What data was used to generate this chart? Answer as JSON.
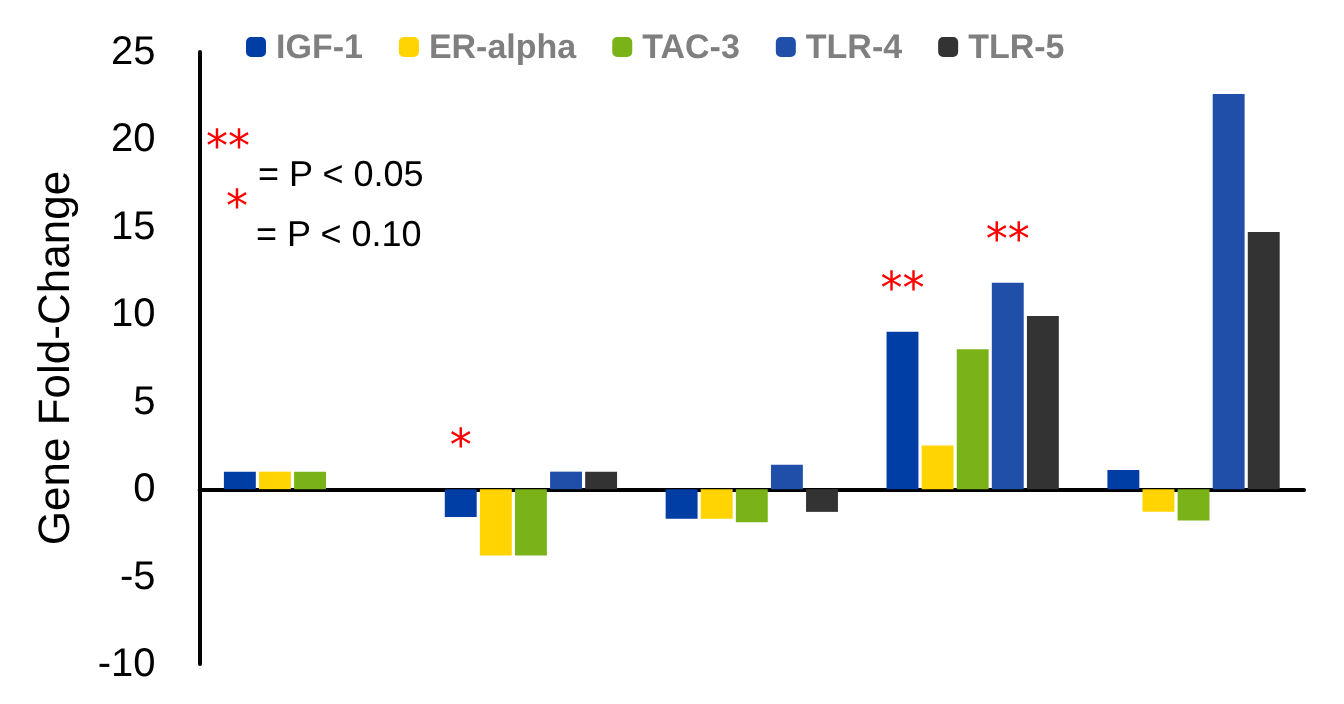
{
  "chart_data": {
    "type": "bar",
    "ylabel": "Gene Fold-Change",
    "categories": [
      null,
      null,
      null,
      null,
      null
    ],
    "series": [
      {
        "name": "IGF-1",
        "color": "#003da5",
        "values": [
          1.0,
          -1.6,
          -1.7,
          9.0,
          1.1
        ],
        "value_labels": [
          null,
          "*",
          null,
          "**",
          null
        ]
      },
      {
        "name": "ER-alpha",
        "color": "#ffd400",
        "values": [
          1.0,
          -3.8,
          -1.7,
          2.5,
          -1.3
        ]
      },
      {
        "name": "TAC-3",
        "color": "#7ab317",
        "values": [
          1.0,
          -3.8,
          -1.9,
          8.0,
          -1.8
        ]
      },
      {
        "name": "TLR-4",
        "color": "#1f4fa8",
        "values": [
          null,
          1.0,
          1.4,
          11.8,
          22.6
        ],
        "value_labels": [
          null,
          null,
          null,
          "**",
          null
        ]
      },
      {
        "name": "TLR-5",
        "color": "#333333",
        "values": [
          null,
          1.0,
          -1.3,
          9.9,
          14.7
        ]
      }
    ],
    "ylim": [
      -10,
      25
    ],
    "yticks": [
      -10,
      -5,
      0,
      5,
      10,
      15,
      20,
      25
    ],
    "legend": "top",
    "annotations": [
      "** = P < 0.05",
      "* = P < 0.10"
    ]
  }
}
